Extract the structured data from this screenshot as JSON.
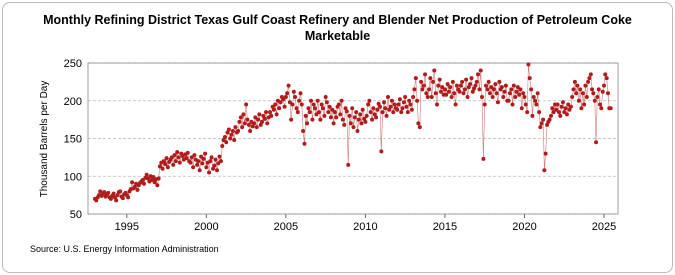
{
  "chart_data": {
    "type": "scatter-line",
    "title": "Monthly Refining District Texas Gulf Coast Refinery and Blender Net Production of Petroleum Coke Marketable",
    "y_label": "Thousand Barrels per Day",
    "source": "Source: U.S. Energy Information Administration",
    "color": "#b01c1c",
    "grid": true,
    "xlim": [
      1992.56,
      2025.88
    ],
    "xticks": [
      1995,
      2000,
      2005,
      2010,
      2015,
      2020,
      2025
    ],
    "ylim": [
      50,
      250
    ],
    "yticks": [
      50,
      100,
      150,
      200,
      250
    ],
    "x": [
      1993.0,
      1993.08,
      1993.17,
      1993.25,
      1993.33,
      1993.42,
      1993.5,
      1993.58,
      1993.67,
      1993.75,
      1993.83,
      1993.92,
      1994.0,
      1994.08,
      1994.17,
      1994.25,
      1994.33,
      1994.42,
      1994.5,
      1994.58,
      1994.67,
      1994.75,
      1994.83,
      1994.92,
      1995.0,
      1995.08,
      1995.17,
      1995.25,
      1995.33,
      1995.42,
      1995.5,
      1995.58,
      1995.67,
      1995.75,
      1995.83,
      1995.92,
      1996.0,
      1996.08,
      1996.17,
      1996.25,
      1996.33,
      1996.42,
      1996.5,
      1996.58,
      1996.67,
      1996.75,
      1996.83,
      1996.92,
      1997.0,
      1997.08,
      1997.17,
      1997.25,
      1997.33,
      1997.42,
      1997.5,
      1997.58,
      1997.67,
      1997.75,
      1997.83,
      1997.92,
      1998.0,
      1998.08,
      1998.17,
      1998.25,
      1998.33,
      1998.42,
      1998.5,
      1998.58,
      1998.67,
      1998.75,
      1998.83,
      1998.92,
      1999.0,
      1999.08,
      1999.17,
      1999.25,
      1999.33,
      1999.42,
      1999.5,
      1999.58,
      1999.67,
      1999.75,
      1999.83,
      1999.92,
      2000.0,
      2000.08,
      2000.17,
      2000.25,
      2000.33,
      2000.42,
      2000.5,
      2000.58,
      2000.67,
      2000.75,
      2000.83,
      2000.92,
      2001.0,
      2001.08,
      2001.17,
      2001.25,
      2001.33,
      2001.42,
      2001.5,
      2001.58,
      2001.67,
      2001.75,
      2001.83,
      2001.92,
      2002.0,
      2002.08,
      2002.17,
      2002.25,
      2002.33,
      2002.42,
      2002.5,
      2002.58,
      2002.67,
      2002.75,
      2002.83,
      2002.92,
      2003.0,
      2003.08,
      2003.17,
      2003.25,
      2003.33,
      2003.42,
      2003.5,
      2003.58,
      2003.67,
      2003.75,
      2003.83,
      2003.92,
      2004.0,
      2004.08,
      2004.17,
      2004.25,
      2004.33,
      2004.42,
      2004.5,
      2004.58,
      2004.67,
      2004.75,
      2004.83,
      2004.92,
      2005.0,
      2005.08,
      2005.17,
      2005.25,
      2005.33,
      2005.42,
      2005.5,
      2005.58,
      2005.67,
      2005.75,
      2005.83,
      2005.92,
      2006.0,
      2006.08,
      2006.17,
      2006.25,
      2006.33,
      2006.42,
      2006.5,
      2006.58,
      2006.67,
      2006.75,
      2006.83,
      2006.92,
      2007.0,
      2007.08,
      2007.17,
      2007.25,
      2007.33,
      2007.42,
      2007.5,
      2007.58,
      2007.67,
      2007.75,
      2007.83,
      2007.92,
      2008.0,
      2008.08,
      2008.17,
      2008.25,
      2008.33,
      2008.42,
      2008.5,
      2008.58,
      2008.67,
      2008.75,
      2008.83,
      2008.92,
      2009.0,
      2009.08,
      2009.17,
      2009.25,
      2009.33,
      2009.42,
      2009.5,
      2009.58,
      2009.67,
      2009.75,
      2009.83,
      2009.92,
      2010.0,
      2010.08,
      2010.17,
      2010.25,
      2010.33,
      2010.42,
      2010.5,
      2010.58,
      2010.67,
      2010.75,
      2010.83,
      2010.92,
      2011.0,
      2011.08,
      2011.17,
      2011.25,
      2011.33,
      2011.42,
      2011.5,
      2011.58,
      2011.67,
      2011.75,
      2011.83,
      2011.92,
      2012.0,
      2012.08,
      2012.17,
      2012.25,
      2012.33,
      2012.42,
      2012.5,
      2012.58,
      2012.67,
      2012.75,
      2012.83,
      2012.92,
      2013.0,
      2013.08,
      2013.17,
      2013.25,
      2013.33,
      2013.42,
      2013.5,
      2013.58,
      2013.67,
      2013.75,
      2013.83,
      2013.92,
      2014.0,
      2014.08,
      2014.17,
      2014.25,
      2014.33,
      2014.42,
      2014.5,
      2014.58,
      2014.67,
      2014.75,
      2014.83,
      2014.92,
      2015.0,
      2015.08,
      2015.17,
      2015.25,
      2015.33,
      2015.42,
      2015.5,
      2015.58,
      2015.67,
      2015.75,
      2015.83,
      2015.92,
      2016.0,
      2016.08,
      2016.17,
      2016.25,
      2016.33,
      2016.42,
      2016.5,
      2016.58,
      2016.67,
      2016.75,
      2016.83,
      2016.92,
      2017.0,
      2017.08,
      2017.17,
      2017.25,
      2017.33,
      2017.42,
      2017.5,
      2017.58,
      2017.67,
      2017.75,
      2017.83,
      2017.92,
      2018.0,
      2018.08,
      2018.17,
      2018.25,
      2018.33,
      2018.42,
      2018.5,
      2018.58,
      2018.67,
      2018.75,
      2018.83,
      2018.92,
      2019.0,
      2019.08,
      2019.17,
      2019.25,
      2019.33,
      2019.42,
      2019.5,
      2019.58,
      2019.67,
      2019.75,
      2019.83,
      2019.92,
      2020.0,
      2020.08,
      2020.17,
      2020.25,
      2020.33,
      2020.42,
      2020.5,
      2020.58,
      2020.67,
      2020.75,
      2020.83,
      2020.92,
      2021.0,
      2021.08,
      2021.17,
      2021.25,
      2021.33,
      2021.42,
      2021.5,
      2021.58,
      2021.67,
      2021.75,
      2021.83,
      2021.92,
      2022.0,
      2022.08,
      2022.17,
      2022.25,
      2022.33,
      2022.42,
      2022.5,
      2022.58,
      2022.67,
      2022.75,
      2022.83,
      2022.92,
      2023.0,
      2023.08,
      2023.17,
      2023.25,
      2023.33,
      2023.42,
      2023.5,
      2023.58,
      2023.67,
      2023.75,
      2023.83,
      2023.92,
      2024.0,
      2024.08,
      2024.17,
      2024.25,
      2024.33,
      2024.42,
      2024.5,
      2024.58,
      2024.67,
      2024.75,
      2024.83,
      2024.92,
      2025.0,
      2025.08,
      2025.17,
      2025.25,
      2025.33,
      2025.42
    ],
    "values": [
      70,
      68,
      72,
      75,
      80,
      74,
      77,
      79,
      73,
      76,
      78,
      72,
      70,
      74,
      77,
      72,
      68,
      75,
      79,
      80,
      73,
      71,
      76,
      78,
      75,
      72,
      80,
      83,
      92,
      84,
      86,
      90,
      82,
      88,
      91,
      93,
      95,
      90,
      98,
      102,
      97,
      93,
      100,
      95,
      99,
      92,
      96,
      88,
      97,
      113,
      118,
      110,
      120,
      116,
      124,
      112,
      119,
      122,
      125,
      115,
      128,
      120,
      132,
      125,
      118,
      130,
      127,
      122,
      129,
      124,
      131,
      120,
      118,
      125,
      112,
      128,
      122,
      115,
      120,
      108,
      126,
      117,
      123,
      130,
      112,
      118,
      105,
      120,
      125,
      110,
      114,
      122,
      108,
      117,
      126,
      120,
      140,
      148,
      152,
      145,
      158,
      162,
      150,
      155,
      160,
      148,
      165,
      158,
      160,
      172,
      178,
      165,
      182,
      170,
      195,
      175,
      168,
      160,
      172,
      166,
      170,
      178,
      165,
      175,
      182,
      168,
      172,
      180,
      176,
      185,
      170,
      178,
      185,
      180,
      192,
      188,
      195,
      182,
      200,
      190,
      198,
      205,
      202,
      192,
      205,
      210,
      220,
      198,
      175,
      195,
      212,
      205,
      190,
      185,
      200,
      210,
      195,
      160,
      143,
      180,
      170,
      190,
      185,
      200,
      175,
      195,
      190,
      182,
      200,
      185,
      175,
      195,
      190,
      180,
      205,
      198,
      185,
      192,
      178,
      188,
      170,
      185,
      178,
      192,
      195,
      182,
      200,
      175,
      168,
      190,
      186,
      115,
      180,
      170,
      190,
      165,
      178,
      185,
      160,
      175,
      182,
      170,
      188,
      176,
      172,
      180,
      195,
      200,
      185,
      175,
      190,
      182,
      178,
      188,
      196,
      192,
      133,
      185,
      198,
      190,
      180,
      205,
      188,
      192,
      200,
      185,
      195,
      190,
      188,
      195,
      202,
      185,
      190,
      198,
      205,
      192,
      185,
      200,
      195,
      188,
      205,
      215,
      230,
      200,
      170,
      165,
      225,
      215,
      220,
      235,
      210,
      205,
      215,
      230,
      205,
      225,
      240,
      210,
      195,
      220,
      228,
      212,
      218,
      208,
      215,
      208,
      222,
      212,
      218,
      205,
      225,
      210,
      195,
      220,
      215,
      212,
      220,
      225,
      210,
      215,
      228,
      205,
      218,
      222,
      230,
      212,
      216,
      220,
      225,
      235,
      215,
      240,
      205,
      123,
      195,
      220,
      215,
      225,
      210,
      218,
      205,
      215,
      222,
      210,
      198,
      225,
      215,
      218,
      205,
      212,
      220,
      200,
      200,
      210,
      215,
      195,
      220,
      205,
      212,
      218,
      208,
      215,
      190,
      210,
      205,
      195,
      185,
      248,
      230,
      215,
      180,
      205,
      200,
      195,
      210,
      185,
      165,
      170,
      175,
      108,
      130,
      168,
      172,
      175,
      180,
      190,
      185,
      195,
      188,
      195,
      185,
      180,
      192,
      198,
      185,
      190,
      182,
      195,
      188,
      192,
      205,
      215,
      225,
      210,
      220,
      200,
      215,
      190,
      210,
      195,
      220,
      205,
      225,
      230,
      235,
      215,
      210,
      200,
      145,
      205,
      215,
      195,
      190,
      212,
      220,
      235,
      230,
      210,
      190,
      190
    ]
  }
}
